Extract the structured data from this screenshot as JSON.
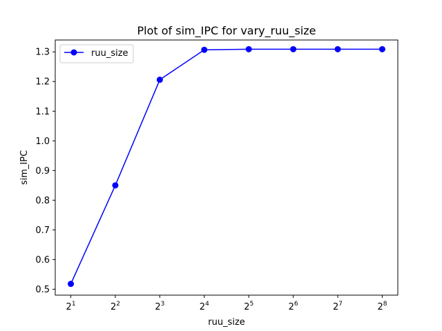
{
  "chart_data": {
    "type": "line",
    "title": "Plot of sim_IPC for vary_ruu_size",
    "xlabel": "ruu_size",
    "ylabel": "sim_IPC",
    "x_scale": "log2",
    "x": [
      2,
      4,
      8,
      16,
      32,
      64,
      128,
      256
    ],
    "x_tick_labels": [
      {
        "base": "2",
        "exp": "1"
      },
      {
        "base": "2",
        "exp": "2"
      },
      {
        "base": "2",
        "exp": "3"
      },
      {
        "base": "2",
        "exp": "4"
      },
      {
        "base": "2",
        "exp": "5"
      },
      {
        "base": "2",
        "exp": "6"
      },
      {
        "base": "2",
        "exp": "7"
      },
      {
        "base": "2",
        "exp": "8"
      }
    ],
    "y_ticks": [
      "0.5",
      "0.6",
      "0.7",
      "0.8",
      "0.9",
      "1.0",
      "1.1",
      "1.2",
      "1.3"
    ],
    "ylim": [
      0.48,
      1.34
    ],
    "grid": false,
    "legend_position": "top-left",
    "series": [
      {
        "name": "ruu_size",
        "color": "#0000ff",
        "marker": "circle",
        "values": [
          0.518,
          0.85,
          1.206,
          1.307,
          1.309,
          1.309,
          1.309,
          1.309
        ]
      }
    ]
  }
}
